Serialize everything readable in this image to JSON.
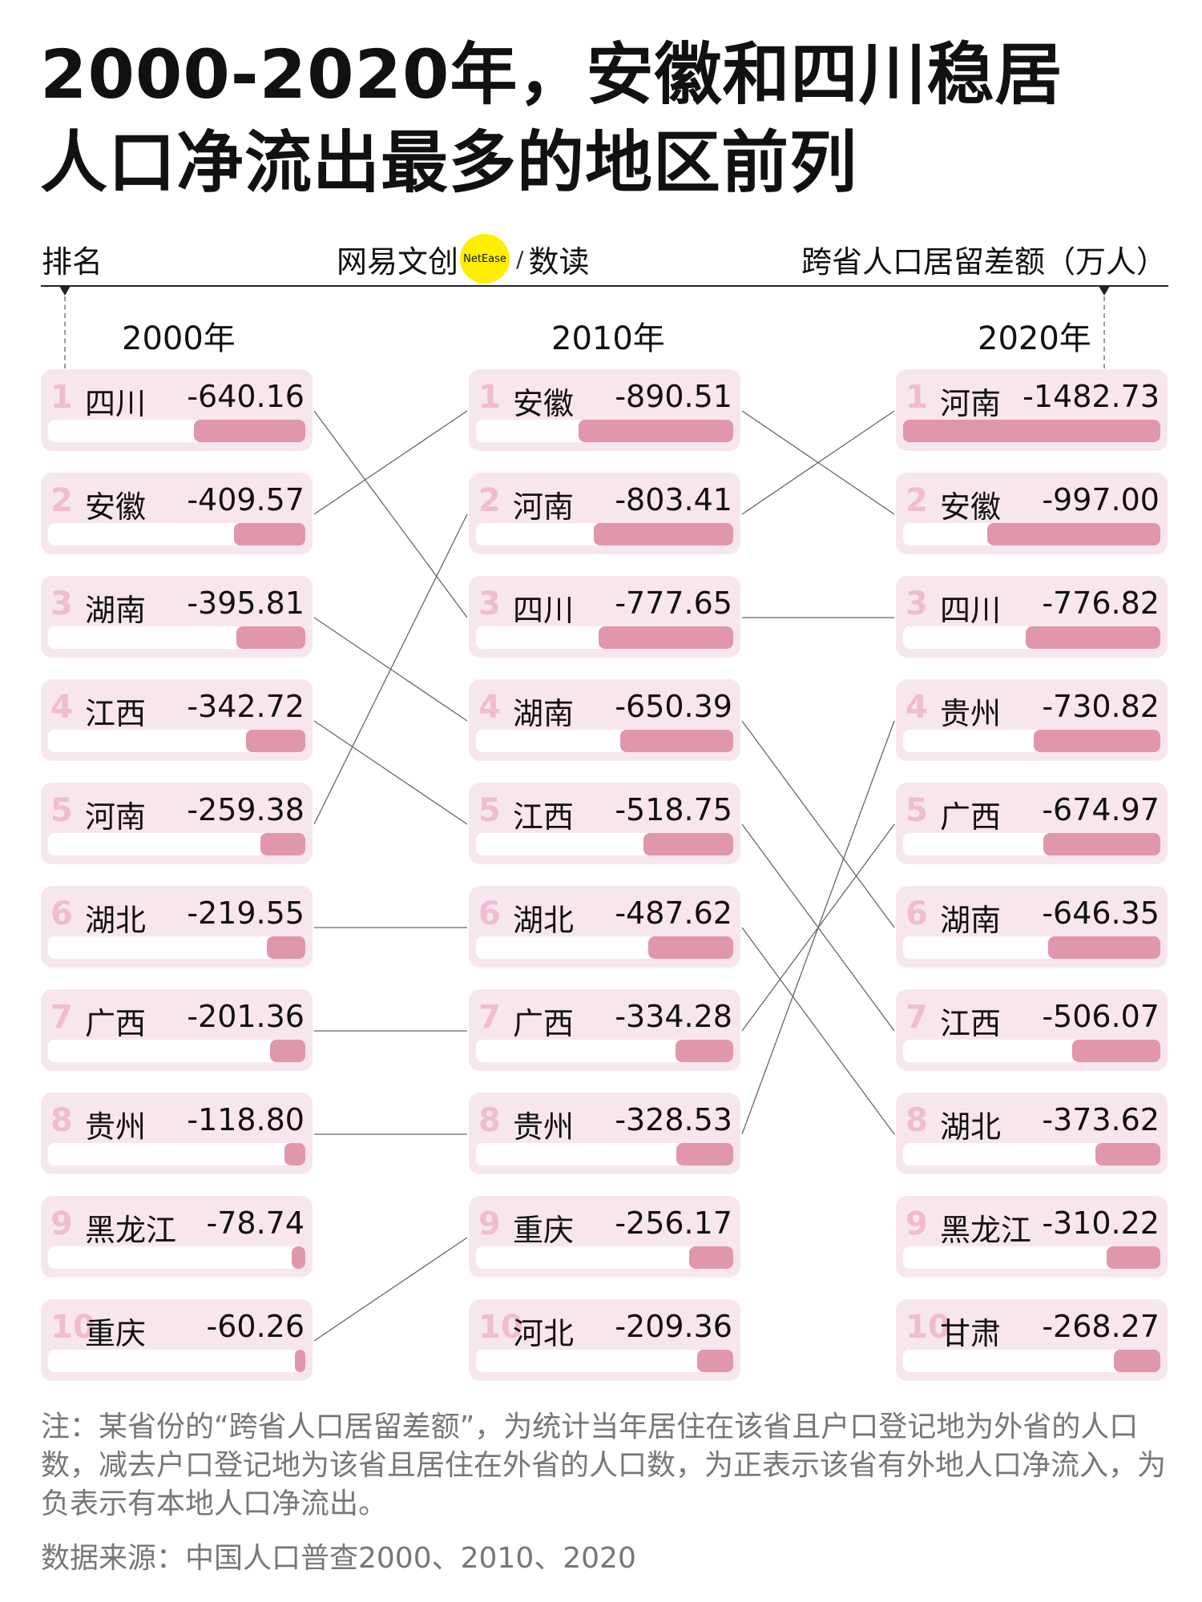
{
  "title": {
    "line1": "2000-2020年，安徽和四川稳居",
    "line2": "人口净流出最多的地区前列"
  },
  "header": {
    "rank_label": "排名",
    "brand_text": "网易文创",
    "brand_badge": "NetEase",
    "brand_sep": "/",
    "brand_suffix": "数读",
    "unit_label": "跨省人口居留差额（万人）"
  },
  "colors": {
    "card_bg": "#f8e6ee",
    "bar": "#e096ab",
    "rank_number": "#f0bcd0",
    "logo_dot": "#ffee00"
  },
  "chart_data": {
    "type": "bar",
    "title": "2000-2020年，安徽和四川稳居人口净流出最多的地区前列",
    "unit": "跨省人口居留差额（万人）",
    "columns": [
      {
        "year": "2000年",
        "items": [
          {
            "rank": 1,
            "region": "四川",
            "value": -640.16
          },
          {
            "rank": 2,
            "region": "安徽",
            "value": -409.57
          },
          {
            "rank": 3,
            "region": "湖南",
            "value": -395.81
          },
          {
            "rank": 4,
            "region": "江西",
            "value": -342.72
          },
          {
            "rank": 5,
            "region": "河南",
            "value": -259.38
          },
          {
            "rank": 6,
            "region": "湖北",
            "value": -219.55
          },
          {
            "rank": 7,
            "region": "广西",
            "value": -201.36
          },
          {
            "rank": 8,
            "region": "贵州",
            "value": -118.8
          },
          {
            "rank": 9,
            "region": "黑龙江",
            "value": -78.74
          },
          {
            "rank": 10,
            "region": "重庆",
            "value": -60.26
          }
        ]
      },
      {
        "year": "2010年",
        "items": [
          {
            "rank": 1,
            "region": "安徽",
            "value": -890.51
          },
          {
            "rank": 2,
            "region": "河南",
            "value": -803.41
          },
          {
            "rank": 3,
            "region": "四川",
            "value": -777.65
          },
          {
            "rank": 4,
            "region": "湖南",
            "value": -650.39
          },
          {
            "rank": 5,
            "region": "江西",
            "value": -518.75
          },
          {
            "rank": 6,
            "region": "湖北",
            "value": -487.62
          },
          {
            "rank": 7,
            "region": "广西",
            "value": -334.28
          },
          {
            "rank": 8,
            "region": "贵州",
            "value": -328.53
          },
          {
            "rank": 9,
            "region": "重庆",
            "value": -256.17
          },
          {
            "rank": 10,
            "region": "河北",
            "value": -209.36
          }
        ]
      },
      {
        "year": "2020年",
        "items": [
          {
            "rank": 1,
            "region": "河南",
            "value": -1482.73
          },
          {
            "rank": 2,
            "region": "安徽",
            "value": -997.0
          },
          {
            "rank": 3,
            "region": "四川",
            "value": -776.82
          },
          {
            "rank": 4,
            "region": "贵州",
            "value": -730.82
          },
          {
            "rank": 5,
            "region": "广西",
            "value": -674.97
          },
          {
            "rank": 6,
            "region": "湖南",
            "value": -646.35
          },
          {
            "rank": 7,
            "region": "江西",
            "value": -506.07
          },
          {
            "rank": 8,
            "region": "湖北",
            "value": -373.62
          },
          {
            "rank": 9,
            "region": "黑龙江",
            "value": -310.22
          },
          {
            "rank": 10,
            "region": "甘肃",
            "value": -268.27
          }
        ]
      }
    ]
  },
  "footer": {
    "note": "注：某省份的“跨省人口居留差额”，为统计当年居住在该省且户口登记地为外省的人口数，减去户口登记地为该省且居住在外省的人口数，为正表示该省有外地人口净流入，为负表示有本地人口净流出。",
    "source": "数据来源：中国人口普查2000、2010、2020"
  }
}
